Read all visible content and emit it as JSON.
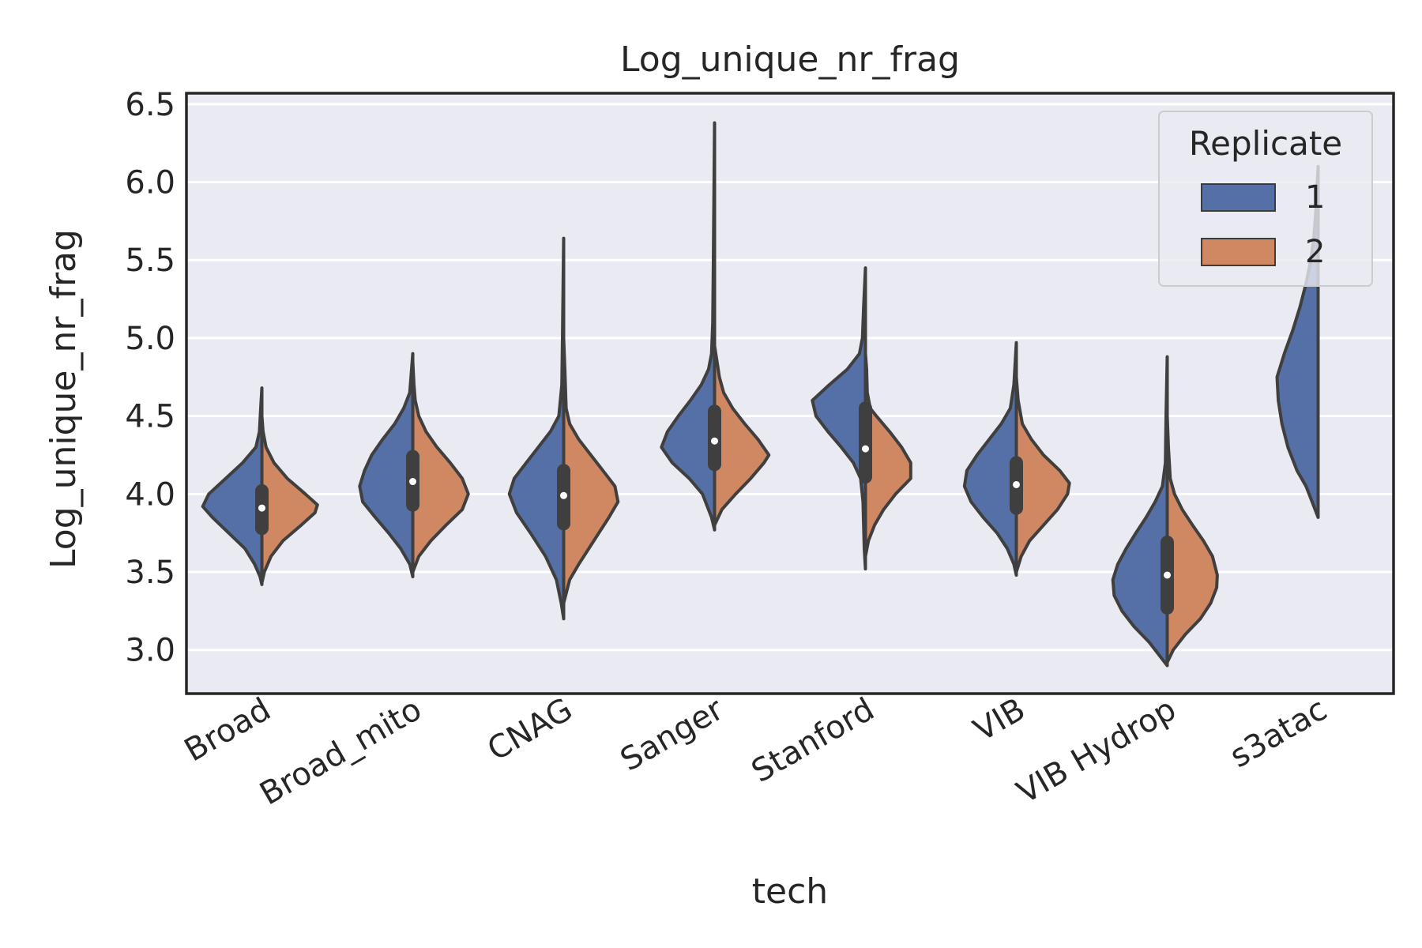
{
  "chart_data": {
    "type": "violin",
    "title": "Log_unique_nr_frag",
    "xlabel": "tech",
    "ylabel": "Log_unique_nr_frag",
    "ylim": [
      2.72,
      6.57
    ],
    "yticks": [
      "3.0",
      "3.5",
      "4.0",
      "4.5",
      "5.0",
      "5.5",
      "6.0",
      "6.5"
    ],
    "grid": true,
    "split": true,
    "categories": [
      "Broad",
      "Broad_mito",
      "CNAG",
      "Sanger",
      "Stanford",
      "VIB",
      "VIB Hydrop",
      "s3atac"
    ],
    "legend": {
      "title": "Replicate",
      "placement": "top-right",
      "entries": [
        {
          "label": "1",
          "color": "#5470a6"
        },
        {
          "label": "2",
          "color": "#d08862"
        }
      ]
    },
    "series": [
      {
        "name": "1",
        "color": "#5470a6",
        "violins": [
          {
            "category": "Broad",
            "profile": [
              [
                3.42,
                0
              ],
              [
                3.47,
                0.03
              ],
              [
                3.55,
                0.12
              ],
              [
                3.65,
                0.28
              ],
              [
                3.75,
                0.55
              ],
              [
                3.85,
                0.82
              ],
              [
                3.92,
                0.98
              ],
              [
                4.0,
                0.88
              ],
              [
                4.1,
                0.6
              ],
              [
                4.2,
                0.32
              ],
              [
                4.3,
                0.1
              ],
              [
                4.4,
                0.04
              ],
              [
                4.55,
                0.02
              ],
              [
                4.68,
                0
              ]
            ]
          },
          {
            "category": "Broad_mito",
            "profile": [
              [
                3.47,
                0
              ],
              [
                3.55,
                0.05
              ],
              [
                3.65,
                0.2
              ],
              [
                3.75,
                0.4
              ],
              [
                3.85,
                0.62
              ],
              [
                3.95,
                0.83
              ],
              [
                4.05,
                0.88
              ],
              [
                4.15,
                0.8
              ],
              [
                4.25,
                0.68
              ],
              [
                4.35,
                0.5
              ],
              [
                4.45,
                0.3
              ],
              [
                4.55,
                0.15
              ],
              [
                4.65,
                0.05
              ],
              [
                4.8,
                0.02
              ],
              [
                4.9,
                0
              ]
            ]
          },
          {
            "category": "CNAG",
            "profile": [
              [
                3.2,
                0
              ],
              [
                3.3,
                0.04
              ],
              [
                3.45,
                0.12
              ],
              [
                3.6,
                0.3
              ],
              [
                3.75,
                0.55
              ],
              [
                3.88,
                0.78
              ],
              [
                4.0,
                0.9
              ],
              [
                4.1,
                0.82
              ],
              [
                4.2,
                0.62
              ],
              [
                4.3,
                0.42
              ],
              [
                4.4,
                0.22
              ],
              [
                4.5,
                0.08
              ],
              [
                4.7,
                0.03
              ],
              [
                5.0,
                0.02
              ],
              [
                5.3,
                0.01
              ],
              [
                5.64,
                0
              ]
            ]
          },
          {
            "category": "Sanger",
            "profile": [
              [
                3.77,
                0
              ],
              [
                3.85,
                0.05
              ],
              [
                4.0,
                0.2
              ],
              [
                4.1,
                0.42
              ],
              [
                4.2,
                0.7
              ],
              [
                4.3,
                0.88
              ],
              [
                4.4,
                0.78
              ],
              [
                4.5,
                0.6
              ],
              [
                4.6,
                0.4
              ],
              [
                4.7,
                0.22
              ],
              [
                4.8,
                0.1
              ],
              [
                4.9,
                0.05
              ],
              [
                5.1,
                0.03
              ],
              [
                5.5,
                0.02
              ],
              [
                5.9,
                0.01
              ],
              [
                6.38,
                0
              ]
            ]
          },
          {
            "category": "Stanford",
            "profile": [
              [
                3.52,
                0
              ],
              [
                3.65,
                0.02
              ],
              [
                3.8,
                0.03
              ],
              [
                3.95,
                0.04
              ],
              [
                4.1,
                0.08
              ],
              [
                4.2,
                0.2
              ],
              [
                4.3,
                0.4
              ],
              [
                4.4,
                0.62
              ],
              [
                4.5,
                0.82
              ],
              [
                4.6,
                0.88
              ],
              [
                4.7,
                0.6
              ],
              [
                4.8,
                0.3
              ],
              [
                4.9,
                0.1
              ],
              [
                5.0,
                0.05
              ],
              [
                5.2,
                0.03
              ],
              [
                5.45,
                0
              ]
            ]
          },
          {
            "category": "VIB",
            "profile": [
              [
                3.48,
                0
              ],
              [
                3.55,
                0.04
              ],
              [
                3.65,
                0.15
              ],
              [
                3.75,
                0.32
              ],
              [
                3.85,
                0.55
              ],
              [
                3.95,
                0.75
              ],
              [
                4.05,
                0.86
              ],
              [
                4.15,
                0.82
              ],
              [
                4.25,
                0.65
              ],
              [
                4.35,
                0.45
              ],
              [
                4.45,
                0.25
              ],
              [
                4.55,
                0.1
              ],
              [
                4.7,
                0.04
              ],
              [
                4.97,
                0
              ]
            ]
          },
          {
            "category": "VIB Hydrop",
            "profile": [
              [
                2.9,
                0
              ],
              [
                2.95,
                0.1
              ],
              [
                3.05,
                0.3
              ],
              [
                3.15,
                0.55
              ],
              [
                3.25,
                0.75
              ],
              [
                3.35,
                0.88
              ],
              [
                3.45,
                0.9
              ],
              [
                3.55,
                0.82
              ],
              [
                3.65,
                0.68
              ],
              [
                3.75,
                0.52
              ],
              [
                3.85,
                0.35
              ],
              [
                3.95,
                0.2
              ],
              [
                4.05,
                0.08
              ],
              [
                4.2,
                0.03
              ],
              [
                4.5,
                0.02
              ],
              [
                4.88,
                0
              ]
            ]
          },
          {
            "category": "s3atac",
            "profile": [
              [
                3.85,
                0
              ],
              [
                3.95,
                0.1
              ],
              [
                4.05,
                0.2
              ],
              [
                4.15,
                0.35
              ],
              [
                4.3,
                0.5
              ],
              [
                4.45,
                0.6
              ],
              [
                4.6,
                0.66
              ],
              [
                4.75,
                0.68
              ],
              [
                4.9,
                0.56
              ],
              [
                5.05,
                0.42
              ],
              [
                5.2,
                0.3
              ],
              [
                5.35,
                0.2
              ],
              [
                5.5,
                0.12
              ],
              [
                5.65,
                0.07
              ],
              [
                5.8,
                0.04
              ],
              [
                5.95,
                0.02
              ],
              [
                6.1,
                0
              ]
            ]
          }
        ]
      },
      {
        "name": "2",
        "color": "#d08862",
        "violins": [
          {
            "category": "Broad",
            "profile": [
              [
                3.43,
                0
              ],
              [
                3.5,
                0.04
              ],
              [
                3.6,
                0.15
              ],
              [
                3.7,
                0.35
              ],
              [
                3.8,
                0.65
              ],
              [
                3.88,
                0.88
              ],
              [
                3.93,
                0.92
              ],
              [
                4.0,
                0.72
              ],
              [
                4.1,
                0.42
              ],
              [
                4.2,
                0.2
              ],
              [
                4.3,
                0.07
              ],
              [
                4.4,
                0.02
              ],
              [
                4.5,
                0
              ]
            ]
          },
          {
            "category": "Broad_mito",
            "profile": [
              [
                3.5,
                0
              ],
              [
                3.6,
                0.1
              ],
              [
                3.7,
                0.3
              ],
              [
                3.8,
                0.55
              ],
              [
                3.9,
                0.82
              ],
              [
                4.0,
                0.92
              ],
              [
                4.1,
                0.82
              ],
              [
                4.2,
                0.62
              ],
              [
                4.3,
                0.4
              ],
              [
                4.4,
                0.22
              ],
              [
                4.5,
                0.1
              ],
              [
                4.6,
                0.04
              ],
              [
                4.7,
                0.02
              ],
              [
                4.85,
                0
              ]
            ]
          },
          {
            "category": "CNAG",
            "profile": [
              [
                3.3,
                0
              ],
              [
                3.45,
                0.1
              ],
              [
                3.55,
                0.25
              ],
              [
                3.7,
                0.5
              ],
              [
                3.85,
                0.75
              ],
              [
                3.95,
                0.9
              ],
              [
                4.05,
                0.85
              ],
              [
                4.15,
                0.65
              ],
              [
                4.25,
                0.45
              ],
              [
                4.35,
                0.25
              ],
              [
                4.45,
                0.1
              ],
              [
                4.55,
                0.04
              ],
              [
                4.8,
                0.02
              ],
              [
                5.0,
                0
              ]
            ]
          },
          {
            "category": "Sanger",
            "profile": [
              [
                3.8,
                0
              ],
              [
                3.9,
                0.12
              ],
              [
                4.0,
                0.35
              ],
              [
                4.1,
                0.6
              ],
              [
                4.2,
                0.82
              ],
              [
                4.25,
                0.9
              ],
              [
                4.35,
                0.72
              ],
              [
                4.45,
                0.5
              ],
              [
                4.55,
                0.3
              ],
              [
                4.65,
                0.15
              ],
              [
                4.75,
                0.08
              ],
              [
                4.85,
                0.04
              ],
              [
                4.95,
                0
              ]
            ]
          },
          {
            "category": "Stanford",
            "profile": [
              [
                3.6,
                0
              ],
              [
                3.7,
                0.05
              ],
              [
                3.8,
                0.15
              ],
              [
                3.9,
                0.3
              ],
              [
                4.0,
                0.5
              ],
              [
                4.1,
                0.75
              ],
              [
                4.2,
                0.75
              ],
              [
                4.3,
                0.6
              ],
              [
                4.4,
                0.4
              ],
              [
                4.5,
                0.18
              ],
              [
                4.55,
                0.08
              ],
              [
                4.65,
                0.03
              ],
              [
                4.8,
                0.02
              ],
              [
                4.9,
                0
              ]
            ]
          },
          {
            "category": "VIB",
            "profile": [
              [
                3.5,
                0
              ],
              [
                3.6,
                0.08
              ],
              [
                3.7,
                0.22
              ],
              [
                3.8,
                0.45
              ],
              [
                3.9,
                0.68
              ],
              [
                4.0,
                0.85
              ],
              [
                4.07,
                0.88
              ],
              [
                4.15,
                0.72
              ],
              [
                4.25,
                0.45
              ],
              [
                4.35,
                0.25
              ],
              [
                4.45,
                0.1
              ],
              [
                4.6,
                0.03
              ],
              [
                4.75,
                0
              ]
            ]
          },
          {
            "category": "VIB Hydrop",
            "profile": [
              [
                2.92,
                0
              ],
              [
                3.0,
                0.1
              ],
              [
                3.1,
                0.3
              ],
              [
                3.2,
                0.55
              ],
              [
                3.3,
                0.72
              ],
              [
                3.4,
                0.82
              ],
              [
                3.48,
                0.83
              ],
              [
                3.6,
                0.75
              ],
              [
                3.7,
                0.6
              ],
              [
                3.8,
                0.42
              ],
              [
                3.9,
                0.25
              ],
              [
                4.0,
                0.12
              ],
              [
                4.1,
                0.05
              ],
              [
                4.3,
                0.02
              ],
              [
                4.5,
                0
              ]
            ]
          }
        ]
      }
    ],
    "inner": [
      {
        "category": "Broad",
        "q1": 3.78,
        "median": 3.91,
        "q3": 4.02
      },
      {
        "category": "Broad_mito",
        "q1": 3.93,
        "median": 4.08,
        "q3": 4.24
      },
      {
        "category": "CNAG",
        "q1": 3.81,
        "median": 3.99,
        "q3": 4.15
      },
      {
        "category": "Sanger",
        "q1": 4.19,
        "median": 4.34,
        "q3": 4.53
      },
      {
        "category": "Stanford",
        "q1": 4.11,
        "median": 4.29,
        "q3": 4.55
      },
      {
        "category": "VIB",
        "q1": 3.91,
        "median": 4.06,
        "q3": 4.2
      },
      {
        "category": "VIB Hydrop",
        "q1": 3.27,
        "median": 3.48,
        "q3": 3.69
      }
    ]
  }
}
